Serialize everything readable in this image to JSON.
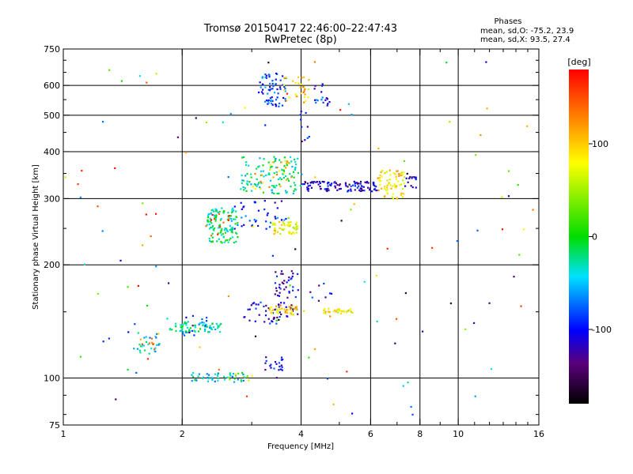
{
  "chart_data": {
    "type": "scatter",
    "title_line1": "Tromsø 20150417 22:46:00–22:47:43",
    "title_line2": "RwPretec (8p)",
    "stats": {
      "header": "Phases",
      "line_o": "mean, sd,O: -75.2, 23.9",
      "line_x": "mean, sd,X:  93.5, 27.4"
    },
    "xlabel": "Frequency [MHz]",
    "ylabel": "Stationary phase Virtual Height [km]",
    "x_scale": "log",
    "y_scale": "log",
    "xlim": [
      1,
      16
    ],
    "ylim": [
      75,
      750
    ],
    "x_ticks": [
      1,
      2,
      4,
      6,
      8,
      10,
      16
    ],
    "y_ticks": [
      75,
      100,
      200,
      300,
      400,
      500,
      600,
      750
    ],
    "x_grid": [
      2,
      4,
      6,
      8,
      10
    ],
    "y_grid": [
      100,
      200,
      300,
      400,
      500,
      600
    ],
    "grid": true,
    "colorbar": {
      "label": "[deg]",
      "min": -180,
      "max": 180,
      "ticks": [
        100,
        0,
        -100
      ],
      "colormap": "rainbow"
    },
    "clusters": [
      {
        "fmin": 1.18,
        "fmax": 1.3,
        "hmin": 124,
        "hmax": 130,
        "phase": -100,
        "n": 2
      },
      {
        "fmin": 1.5,
        "fmax": 1.75,
        "hmin": 115,
        "hmax": 135,
        "phase": -40,
        "n": 25
      },
      {
        "fmin": 1.55,
        "fmax": 1.7,
        "hmin": 118,
        "hmax": 128,
        "phase": 140,
        "n": 8
      },
      {
        "fmin": 1.85,
        "fmax": 2.5,
        "hmin": 133,
        "hmax": 142,
        "phase": -30,
        "n": 70
      },
      {
        "fmin": 2.0,
        "fmax": 2.3,
        "hmin": 130,
        "hmax": 150,
        "phase": -100,
        "n": 15
      },
      {
        "fmin": 2.1,
        "fmax": 2.9,
        "hmin": 98,
        "hmax": 104,
        "phase": -40,
        "n": 45
      },
      {
        "fmin": 2.6,
        "fmax": 3.0,
        "hmin": 99,
        "hmax": 104,
        "phase": 50,
        "n": 10
      },
      {
        "fmin": 2.85,
        "fmax": 3.5,
        "hmin": 140,
        "hmax": 160,
        "phase": -110,
        "n": 30
      },
      {
        "fmin": 3.2,
        "fmax": 3.6,
        "hmin": 105,
        "hmax": 115,
        "phase": -110,
        "n": 20
      },
      {
        "fmin": 3.4,
        "fmax": 3.95,
        "hmin": 145,
        "hmax": 200,
        "phase": -115,
        "n": 55
      },
      {
        "fmin": 3.3,
        "fmax": 3.9,
        "hmin": 148,
        "hmax": 156,
        "phase": 95,
        "n": 35
      },
      {
        "fmin": 4.5,
        "fmax": 5.4,
        "hmin": 149,
        "hmax": 154,
        "phase": 85,
        "n": 30
      },
      {
        "fmin": 4.2,
        "fmax": 4.8,
        "hmin": 160,
        "hmax": 180,
        "phase": -100,
        "n": 8
      },
      {
        "fmin": 2.3,
        "fmax": 2.75,
        "hmin": 230,
        "hmax": 285,
        "phase": -20,
        "n": 120
      },
      {
        "fmin": 2.25,
        "fmax": 2.7,
        "hmin": 240,
        "hmax": 275,
        "phase": 150,
        "n": 12
      },
      {
        "fmin": 2.7,
        "fmax": 3.7,
        "hmin": 250,
        "hmax": 300,
        "phase": -90,
        "n": 40
      },
      {
        "fmin": 3.35,
        "fmax": 3.9,
        "hmin": 243,
        "hmax": 262,
        "phase": 80,
        "n": 50
      },
      {
        "fmin": 2.8,
        "fmax": 4.0,
        "hmin": 310,
        "hmax": 390,
        "phase": -25,
        "n": 120
      },
      {
        "fmin": 3.0,
        "fmax": 3.9,
        "hmin": 320,
        "hmax": 380,
        "phase": 100,
        "n": 25
      },
      {
        "fmin": 4.0,
        "fmax": 6.2,
        "hmin": 315,
        "hmax": 335,
        "phase": -115,
        "n": 110
      },
      {
        "fmin": 6.2,
        "fmax": 7.3,
        "hmin": 300,
        "hmax": 360,
        "phase": 90,
        "n": 70
      },
      {
        "fmin": 7.3,
        "fmax": 7.8,
        "hmin": 320,
        "hmax": 345,
        "phase": -110,
        "n": 15
      },
      {
        "fmin": 3.1,
        "fmax": 3.65,
        "hmin": 530,
        "hmax": 650,
        "phase": -85,
        "n": 70
      },
      {
        "fmin": 3.6,
        "fmax": 4.2,
        "hmin": 540,
        "hmax": 640,
        "phase": 100,
        "n": 30
      },
      {
        "fmin": 4.3,
        "fmax": 4.7,
        "hmin": 530,
        "hmax": 610,
        "phase": -95,
        "n": 18
      },
      {
        "fmin": 3.9,
        "fmax": 4.2,
        "hmin": 420,
        "hmax": 520,
        "phase": -110,
        "n": 10
      },
      {
        "fmin": 1.0,
        "fmax": 16.0,
        "hmin": 80,
        "hmax": 700,
        "phase": 0,
        "n": 120,
        "random_phase": true
      }
    ]
  }
}
